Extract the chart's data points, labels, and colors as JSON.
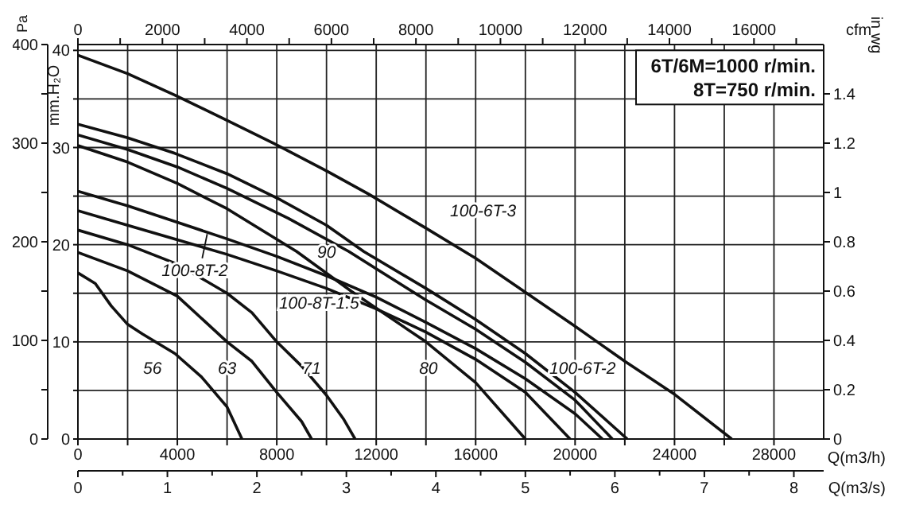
{
  "chart_data": {
    "type": "line",
    "xlabel": "Q(m3/h)",
    "x2label": "cfm",
    "ylabel": "mm.H₂O",
    "y2label": "Pa",
    "y3label": "in wg",
    "xlim": [
      0,
      30000
    ],
    "xticks": [
      0,
      {
        "value": 2000,
        "label": null
      },
      4000,
      {
        "value": 6000,
        "label": null
      },
      8000,
      {
        "value": 10000,
        "label": null
      },
      12000,
      {
        "value": 14000,
        "label": null
      },
      16000,
      {
        "value": 18000,
        "label": null
      },
      20000,
      {
        "value": 22000,
        "label": null
      },
      24000,
      {
        "value": 26000,
        "label": null
      },
      28000
    ],
    "x2lim": [
      0,
      17650
    ],
    "x2ticks": [
      0,
      {
        "value": 1000,
        "label": null
      },
      2000,
      {
        "value": 3000,
        "label": null
      },
      4000,
      {
        "value": 5000,
        "label": null
      },
      6000,
      {
        "value": 7000,
        "label": null
      },
      8000,
      {
        "value": 9000,
        "label": null
      },
      10000,
      {
        "value": 11000,
        "label": null
      },
      12000,
      {
        "value": 13000,
        "label": null
      },
      14000,
      {
        "value": 15000,
        "label": null
      },
      16000,
      {
        "value": 17000,
        "label": null
      }
    ],
    "ylim": [
      0,
      40.6
    ],
    "yticks": [
      0,
      {
        "value": 5,
        "label": null
      },
      10,
      {
        "value": 15,
        "label": null
      },
      20,
      {
        "value": 25,
        "label": null
      },
      30,
      {
        "value": 35,
        "label": null
      },
      40
    ],
    "y2lim": [
      0,
      400
    ],
    "y2ticks": [
      0,
      {
        "value": 50,
        "label": null
      },
      100,
      {
        "value": 150,
        "label": null
      },
      200,
      {
        "value": 250,
        "label": null
      },
      300,
      {
        "value": 350,
        "label": null
      },
      400
    ],
    "y3lim": [
      0,
      1.6
    ],
    "y3ticks": [
      0,
      0.2,
      0.4,
      0.6,
      0.8,
      1,
      1.2,
      1.4
    ],
    "grid": true,
    "annotations": [
      "6T/6M=1000 r/min.",
      "8T=750 r/min.",
      "0",
      "1",
      "2",
      "3",
      "4",
      "5",
      "6",
      "7",
      "8",
      "Q(m3/s)"
    ],
    "series": [
      {
        "name": "100-6T-3",
        "color": "#111111",
        "x": [
          0,
          2000,
          3900,
          6000,
          7900,
          10000,
          11700,
          14000,
          16000,
          18000,
          20000,
          22000,
          24000,
          26300
        ],
        "values": [
          39.5,
          37.6,
          35.4,
          32.8,
          30.4,
          27.6,
          25.2,
          21.7,
          18.6,
          15.1,
          11.6,
          8,
          4.6,
          0
        ]
      },
      {
        "name": "100-6T-2",
        "color": "#111111",
        "x": [
          0,
          2000,
          3900,
          6000,
          8160,
          10000,
          11500,
          14000,
          16000,
          18000,
          20000,
          22100
        ],
        "values": [
          32.4,
          31,
          29.4,
          27.3,
          24.6,
          22,
          19.3,
          15.5,
          12.3,
          8.8,
          4.8,
          0
        ]
      },
      {
        "name": "90",
        "color": "#111111",
        "x": [
          0,
          2000,
          4000,
          6000,
          8470,
          10900,
          14000,
          16000,
          18000,
          20000,
          21500
        ],
        "values": [
          31.3,
          29.8,
          28,
          25.8,
          22.7,
          19.3,
          14.3,
          11.3,
          7.9,
          4,
          0
        ]
      },
      {
        "name": "80",
        "color": "#111111",
        "x": [
          0,
          2000,
          4000,
          6000,
          8800,
          11000,
          14000,
          16000,
          18000
        ],
        "values": [
          30.2,
          28.5,
          26.3,
          23.7,
          19.3,
          15.2,
          10,
          5.8,
          0
        ]
      },
      {
        "name": "100-8T-2",
        "color": "#111111",
        "x": [
          0,
          2000,
          4000,
          6000,
          8000,
          10000,
          12000,
          14000,
          16000,
          18000,
          20000,
          21100
        ],
        "values": [
          25.5,
          24,
          22.3,
          20.6,
          18.8,
          16.8,
          14.6,
          12,
          9.3,
          6.2,
          2.6,
          0
        ]
      },
      {
        "name": "100-8T-1.5",
        "color": "#111111",
        "x": [
          0,
          2000,
          4000,
          6000,
          8000,
          10000,
          12000,
          14000,
          16000,
          18000,
          19800
        ],
        "values": [
          23.5,
          22,
          20.5,
          19,
          17.3,
          15.5,
          13.4,
          11,
          8.2,
          4.8,
          0
        ]
      },
      {
        "name": "71",
        "color": "#111111",
        "x": [
          0,
          2000,
          4000,
          6000,
          7000,
          8000,
          9000,
          10000,
          10700,
          11150
        ],
        "values": [
          21.5,
          20,
          18,
          15,
          13,
          10,
          7.5,
          4.5,
          2,
          0
        ]
      },
      {
        "name": "63",
        "color": "#111111",
        "x": [
          0,
          2000,
          4000,
          6000,
          7000,
          8000,
          9000,
          9400
        ],
        "values": [
          19.2,
          17.3,
          14.7,
          10,
          8,
          4.8,
          1.8,
          0
        ]
      },
      {
        "name": "56",
        "color": "#111111",
        "x": [
          0,
          700,
          1340,
          2000,
          2600,
          3900,
          4970,
          6000,
          6600
        ],
        "values": [
          17.1,
          16,
          13.7,
          11.8,
          10.8,
          8.8,
          6.4,
          3.3,
          0
        ]
      }
    ]
  }
}
